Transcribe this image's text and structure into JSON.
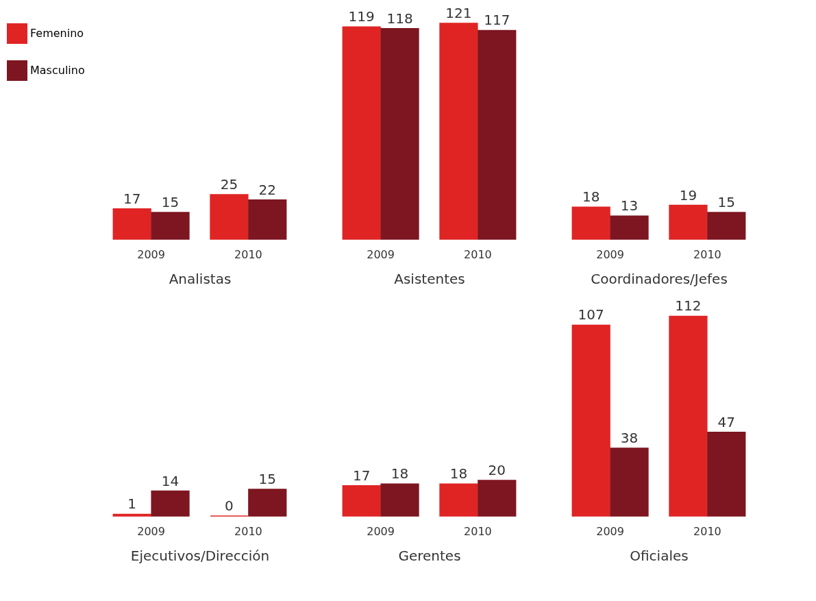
{
  "chart_data": [
    {
      "type": "bar",
      "xlabel": "Analistas",
      "categories": [
        "2009",
        "2010"
      ],
      "data_labels": true,
      "legend": "left",
      "series": [
        {
          "name": "Femenino",
          "color": "#e02424",
          "values": [
            17,
            25
          ]
        },
        {
          "name": "Masculino",
          "color": "#7d1620",
          "values": [
            15,
            22
          ]
        }
      ]
    },
    {
      "type": "bar",
      "xlabel": "Asistentes",
      "categories": [
        "2009",
        "2010"
      ],
      "data_labels": true,
      "series": [
        {
          "name": "Femenino",
          "color": "#e02424",
          "values": [
            119,
            121
          ]
        },
        {
          "name": "Masculino",
          "color": "#7d1620",
          "values": [
            118,
            117
          ]
        }
      ]
    },
    {
      "type": "bar",
      "xlabel": "Coordinadores/Jefes",
      "categories": [
        "2009",
        "2010"
      ],
      "data_labels": true,
      "series": [
        {
          "name": "Femenino",
          "color": "#e02424",
          "values": [
            18,
            19
          ]
        },
        {
          "name": "Masculino",
          "color": "#7d1620",
          "values": [
            13,
            15
          ]
        }
      ]
    },
    {
      "type": "bar",
      "xlabel": "Ejecutivos/Dirección",
      "categories": [
        "2009",
        "2010"
      ],
      "data_labels": true,
      "series": [
        {
          "name": "Femenino",
          "color": "#e02424",
          "values": [
            1,
            0
          ]
        },
        {
          "name": "Masculino",
          "color": "#7d1620",
          "values": [
            14,
            15
          ]
        }
      ]
    },
    {
      "type": "bar",
      "xlabel": "Gerentes",
      "categories": [
        "2009",
        "2010"
      ],
      "data_labels": true,
      "series": [
        {
          "name": "Femenino",
          "color": "#e02424",
          "values": [
            17,
            18
          ]
        },
        {
          "name": "Masculino",
          "color": "#7d1620",
          "values": [
            18,
            20
          ]
        }
      ]
    },
    {
      "type": "bar",
      "xlabel": "Oficiales",
      "categories": [
        "2009",
        "2010"
      ],
      "data_labels": true,
      "series": [
        {
          "name": "Femenino",
          "color": "#e02424",
          "values": [
            107,
            112
          ]
        },
        {
          "name": "Masculino",
          "color": "#7d1620",
          "values": [
            38,
            47
          ]
        }
      ]
    }
  ]
}
